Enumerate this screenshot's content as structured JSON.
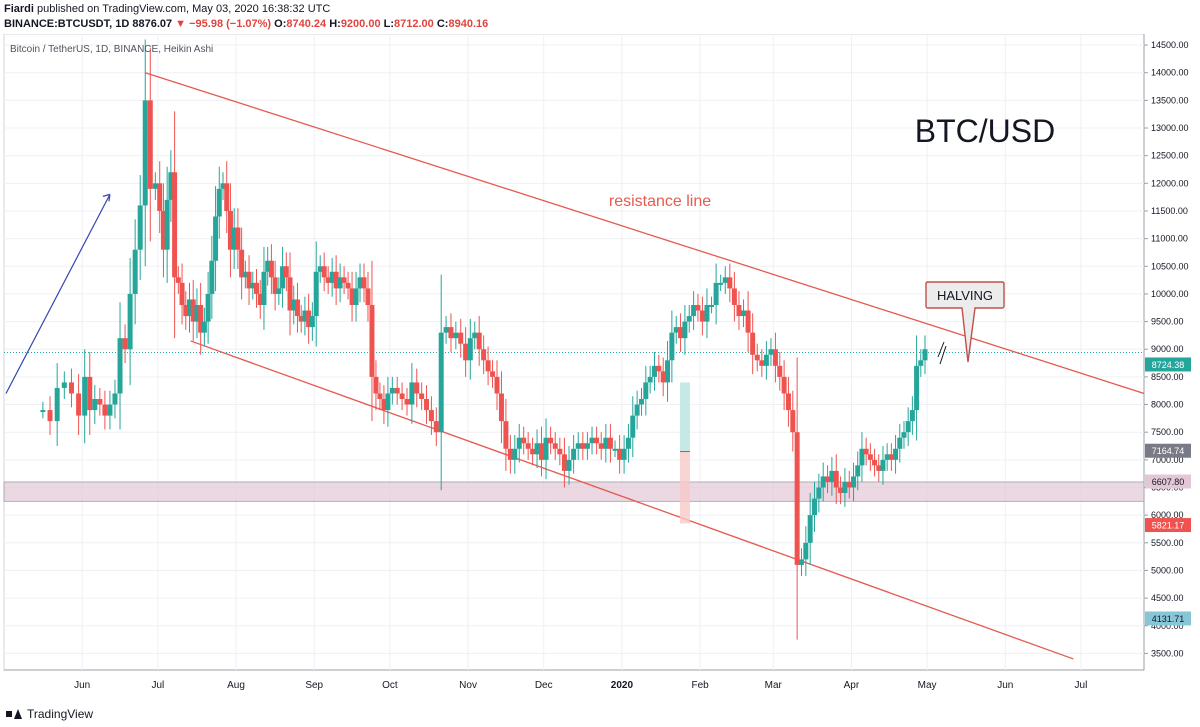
{
  "header": {
    "author": "Fiardi",
    "published": "published on TradingView.com, May 03, 2020 16:38:32 UTC",
    "symbol": "BINANCE:BTCUSDT, 1D",
    "price": "8876.07",
    "change_arrow": "▼",
    "change": "−95.98 (−1.07%)",
    "o_label": "O:",
    "o": "8740.24",
    "h_label": "H:",
    "h": "9200.00",
    "l_label": "L:",
    "l": "8712.00",
    "c_label": "C:",
    "c": "8940.16"
  },
  "footer": {
    "brand": "TradingView"
  },
  "chart_data": {
    "type": "candlestick",
    "legend": "Bitcoin / TetherUS, 1D, BINANCE, Heikin Ashi",
    "ylim": [
      3200,
      14700
    ],
    "y_ticks": [
      3500,
      4000,
      4500,
      5000,
      5500,
      6000,
      6500,
      7000,
      7500,
      8000,
      8500,
      9000,
      9500,
      10000,
      10500,
      11000,
      11500,
      12000,
      12500,
      13000,
      13500,
      14000,
      14500
    ],
    "x_ticks": [
      "Jun",
      "Jul",
      "Aug",
      "Sep",
      "Oct",
      "Nov",
      "Dec",
      "2020",
      "Feb",
      "Mar",
      "Apr",
      "May",
      "Jun",
      "Jul"
    ],
    "series": [
      {
        "month_start": "2019-05-15",
        "values": [
          7900,
          7700,
          8300,
          8400,
          8200,
          7800
        ]
      },
      {
        "month_start": "2019-06-01",
        "values": [
          8500,
          7900,
          8100,
          8000,
          7800,
          8000,
          8200,
          9200,
          9000,
          10000,
          10800,
          11600,
          13500,
          11900,
          12000
        ]
      },
      {
        "month_start": "2019-07-01",
        "values": [
          11500,
          10800,
          11700,
          12200,
          10300,
          10200,
          9800,
          9600,
          9900,
          9500,
          9800,
          9300,
          9500,
          10000,
          10600,
          11400,
          11900,
          12000,
          11500,
          10800,
          11200
        ]
      },
      {
        "month_start": "2019-08-01",
        "values": [
          10800,
          10300,
          10400,
          10100,
          10200,
          10000,
          9800,
          10400,
          10600,
          10300,
          10000,
          10100,
          10500,
          10300,
          9700,
          9900,
          9600,
          9500,
          9700,
          9400,
          9600
        ]
      },
      {
        "month_start": "2019-09-01",
        "values": [
          10400,
          10500,
          10300,
          10200,
          10400,
          10100,
          10300,
          10200,
          10100,
          9800,
          10100,
          10300,
          10100,
          9800,
          8500,
          8200,
          8100,
          7900,
          8200
        ]
      },
      {
        "month_start": "2019-10-01",
        "values": [
          8300,
          8200,
          8100,
          8000,
          8400,
          8200,
          8100,
          7900,
          7700,
          7500,
          9300,
          9400,
          9200,
          9300,
          9100,
          8800
        ]
      },
      {
        "month_start": "2019-11-01",
        "values": [
          9200,
          9300,
          9000,
          8800,
          8600,
          8500,
          8200,
          7700,
          7200,
          7000,
          7200,
          7400,
          7300,
          7200,
          7100,
          7300,
          7000
        ]
      },
      {
        "month_start": "2019-12-01",
        "values": [
          7400,
          7300,
          7200,
          7100,
          6800,
          7000,
          7200,
          7300,
          7200,
          7300,
          7400,
          7300,
          7200,
          7400,
          7200,
          7200,
          7000
        ]
      },
      {
        "month_start": "2020-01-01",
        "values": [
          7200,
          7400,
          7800,
          8000,
          8100,
          8400,
          8500,
          8700,
          8600,
          8400,
          8800,
          9300,
          9400,
          9200,
          9500,
          9600,
          9800,
          9700
        ]
      },
      {
        "month_start": "2020-02-01",
        "values": [
          9500,
          9800,
          9800,
          10200,
          10200,
          10300,
          10100,
          9800,
          9600,
          9700,
          9300,
          8900,
          8800,
          8700,
          8900,
          9000
        ]
      },
      {
        "month_start": "2020-03-01",
        "values": [
          8700,
          8500,
          8200,
          7900,
          7500,
          5100,
          5200,
          5500,
          6000,
          6300,
          6500,
          6700,
          6600,
          6800,
          6500,
          6400,
          6600,
          6500
        ]
      },
      {
        "month_start": "2020-04-01",
        "values": [
          6700,
          6900,
          7200,
          7100,
          7000,
          6900,
          6800,
          7000,
          7100,
          7000,
          7200,
          7400,
          7500,
          7700,
          7900,
          8700,
          8800,
          9000
        ]
      }
    ],
    "price_tags": [
      {
        "value": 8724.38,
        "label": "8724.38",
        "color": "#26a69a"
      },
      {
        "value": 7164.74,
        "label": "7164.74",
        "color": "#787b86"
      },
      {
        "value": 6607.8,
        "label": "6607.80",
        "color": "#e3c7d7"
      },
      {
        "value": 5821.17,
        "label": "5821.17",
        "color": "#ef5350"
      },
      {
        "value": 4131.71,
        "label": "4131.71",
        "color": "#86c6d6"
      }
    ],
    "annotations": {
      "title": "BTC/USD",
      "resistance_label": "resistance line",
      "halving_label": "HALVING"
    },
    "colors": {
      "up": "#26a69a",
      "down": "#ef5350",
      "channel": "#e65a4f",
      "zone": "#e3c7d7",
      "arrow": "#3545b0"
    }
  }
}
